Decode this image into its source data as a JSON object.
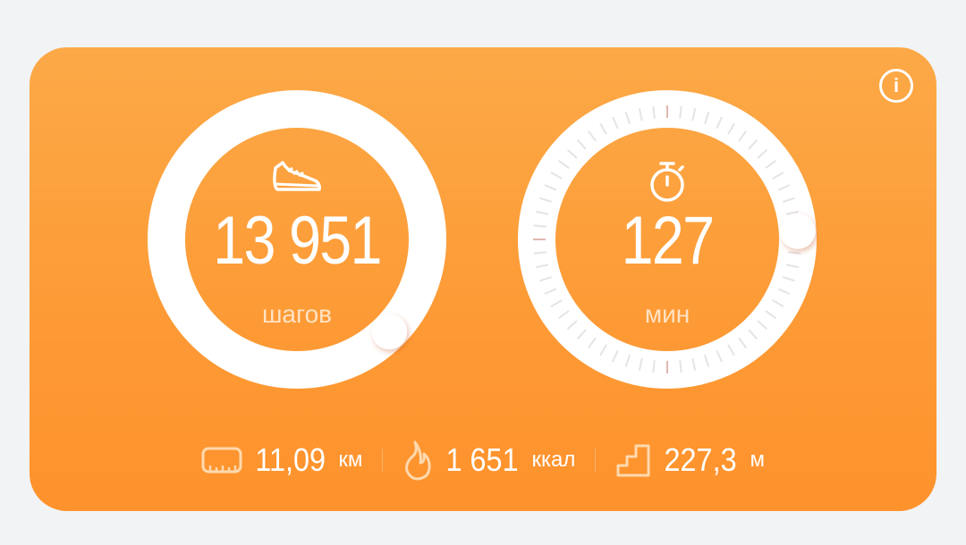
{
  "steps": {
    "value": "13 951",
    "unit": "шагов",
    "icon": "sneaker-icon",
    "progress": 1.375
  },
  "active": {
    "value": "127",
    "unit": "мин",
    "icon": "stopwatch-icon",
    "progress": 1.24
  },
  "stats": [
    {
      "icon": "ruler-icon",
      "value": "11,09",
      "unit": "км"
    },
    {
      "icon": "flame-icon",
      "value": "1 651",
      "unit": "ккал"
    },
    {
      "icon": "stairs-icon",
      "value": "227,3",
      "unit": "м"
    }
  ],
  "info_icon": "i",
  "colors": {
    "background": "#f2f3f5",
    "card_top": "#fca947",
    "card_bottom": "#fe922c",
    "ring": "#ffffff"
  }
}
